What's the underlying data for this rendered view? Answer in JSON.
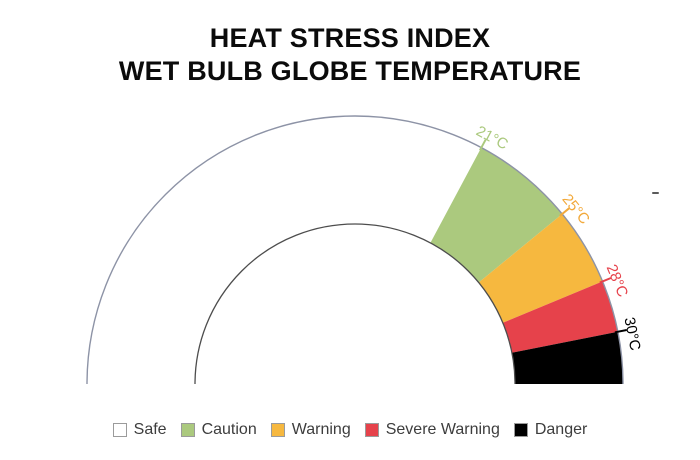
{
  "title": {
    "line1": "HEAT STRESS INDEX",
    "line2": "WET BULB GLOBE TEMPERATURE"
  },
  "chart_data": {
    "type": "gauge",
    "unit": "°C",
    "min": 0,
    "max": 32,
    "start_angle": 180,
    "end_angle": 0,
    "segments": [
      {
        "label": "Safe",
        "from": 0,
        "to": 21,
        "color": "#ffffff"
      },
      {
        "label": "Caution",
        "from": 21,
        "to": 25,
        "color": "#abc97e"
      },
      {
        "label": "Warning",
        "from": 25,
        "to": 28,
        "color": "#f6b83f"
      },
      {
        "label": "Severe Warning",
        "from": 28,
        "to": 30,
        "color": "#e6424b"
      },
      {
        "label": "Danger",
        "from": 30,
        "to": 32,
        "color": "#000000"
      }
    ],
    "ticks": [
      {
        "value": 21,
        "label": "21°C",
        "color": "#abc97e"
      },
      {
        "value": 25,
        "label": "25°C",
        "color": "#f2a93b"
      },
      {
        "value": 28,
        "label": "28°C",
        "color": "#e6424b"
      },
      {
        "value": 30,
        "label": "30°C",
        "color": "#000000"
      }
    ],
    "outline_colors": {
      "outer_arc": "#8d93a6",
      "inner_arc": "#4d4d4d"
    }
  },
  "legend": {
    "items": [
      {
        "label": "Safe",
        "color": "#ffffff"
      },
      {
        "label": "Caution",
        "color": "#abc97e"
      },
      {
        "label": "Warning",
        "color": "#f6b83f"
      },
      {
        "label": "Severe Warning",
        "color": "#e6424b"
      },
      {
        "label": "Danger",
        "color": "#000000"
      }
    ]
  }
}
